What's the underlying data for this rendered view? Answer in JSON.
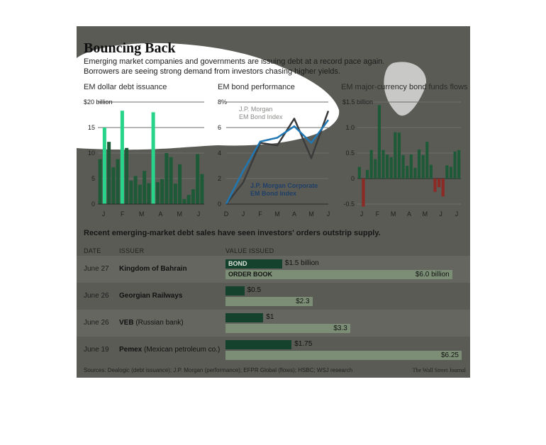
{
  "header": {
    "title": "Bouncing Back",
    "subtitle_line1": "Emerging market companies and governments are issuing debt at a record pace again.",
    "subtitle_line2": "Borrowers are seeing strong demand from investors chasing higher yields."
  },
  "colors": {
    "panel": "#5b5b56",
    "bar_green": "#1f5a38",
    "bar_highlight": "#27d48a",
    "bar_negative": "#8c2a25",
    "corporate_line": "#1f77b4",
    "em_bond_line": "#3b3b3b",
    "text": "#1b1b1b"
  },
  "chart_data": [
    {
      "type": "bar",
      "title": "EM dollar debt issuance",
      "unit_label": "$20 billion",
      "ylim": [
        0,
        20
      ],
      "yticks": [
        0,
        5,
        10,
        15,
        20
      ],
      "ytick_labels": [
        "0",
        "5",
        "10",
        "15",
        "$20 billion"
      ],
      "xtick_labels": [
        "J",
        "F",
        "M",
        "A",
        "M",
        "J"
      ],
      "values": [
        8.8,
        15,
        12.2,
        7.2,
        8.8,
        18.3,
        11,
        4.6,
        5.5,
        3.8,
        6.5,
        4.1,
        18,
        4.3,
        4.9,
        10,
        9.2,
        4,
        7.8,
        1,
        1.8,
        2.9,
        9.8,
        5.9
      ],
      "highlight_indices": [
        1,
        5,
        12
      ],
      "grid": true
    },
    {
      "type": "line",
      "title": "EM bond performance",
      "ylim": [
        0,
        8
      ],
      "yticks": [
        0,
        2,
        4,
        6,
        8
      ],
      "ytick_labels": [
        "0",
        "2",
        "4",
        "6",
        "8%"
      ],
      "xtick_labels": [
        "D",
        "J",
        "F",
        "M",
        "A",
        "M",
        "J"
      ],
      "x": [
        0,
        1,
        2,
        3,
        4,
        5,
        6
      ],
      "series": [
        {
          "name": "J.P. Morgan Corporate EM Bond Index",
          "values": [
            0,
            2.6,
            4.9,
            5.2,
            6.1,
            4.8,
            6.6
          ]
        },
        {
          "name": "J.P. Morgan EM Bond Index",
          "values": [
            0,
            1.7,
            4.8,
            4.6,
            6.7,
            3.6,
            7.3
          ]
        }
      ],
      "series_labels": [
        {
          "line1": "J.P. Morgan Corporate",
          "line2": "EM Bond Index"
        },
        {
          "line1": "J.P. Morgan",
          "line2": "EM Bond Index"
        }
      ],
      "grid": true
    },
    {
      "type": "bar",
      "title": "EM major-currency bond funds flows",
      "ylim": [
        -0.5,
        1.5
      ],
      "yticks": [
        -0.5,
        0,
        0.5,
        1.0,
        1.5
      ],
      "ytick_labels": [
        "-0.5",
        "0",
        "0.5",
        "1.0",
        "$1.5 billion"
      ],
      "xtick_labels": [
        "J",
        "F",
        "M",
        "A",
        "M",
        "J",
        "J"
      ],
      "values": [
        0.23,
        -0.55,
        0.17,
        0.56,
        0.38,
        1.44,
        0.56,
        0.47,
        0.42,
        0.91,
        0.9,
        0.46,
        0.25,
        0.47,
        0.21,
        0.57,
        0.46,
        0.72,
        0.27,
        -0.26,
        -0.17,
        -0.35,
        0.26,
        0.23,
        0.53,
        0.56
      ],
      "grid": true
    }
  ],
  "table": {
    "intro": "Recent emerging-market debt sales have seen investors' orders outstrip supply.",
    "headers": {
      "date": "DATE",
      "issuer": "ISSUER",
      "value": "VALUE ISSUED"
    },
    "bond_tag": "BOND",
    "order_tag": "ORDER BOOK",
    "scale_max": 6.25,
    "rows": [
      {
        "date": "June 27",
        "issuer": "Kingdom of Bahrain",
        "note": "",
        "bond": 1.5,
        "bond_label": "$1.5 billion",
        "order": 6.0,
        "order_label": "$6.0 billion"
      },
      {
        "date": "June 26",
        "issuer": "Georgian Railways",
        "note": "",
        "bond": 0.5,
        "bond_label": "$0.5",
        "order": 2.3,
        "order_label": "$2.3"
      },
      {
        "date": "June 26",
        "issuer": "VEB",
        "note": "(Russian bank)",
        "bond": 1.0,
        "bond_label": "$1",
        "order": 3.3,
        "order_label": "$3.3"
      },
      {
        "date": "June 19",
        "issuer": "Pemex",
        "note": "(Mexican petroleum co.)",
        "bond": 1.75,
        "bond_label": "$1.75",
        "order": 6.25,
        "order_label": "$6.25"
      }
    ]
  },
  "footer": {
    "sources": "Sources: Dealogic (debt issuance); J.P. Morgan (performance); EFPR Global (flows); HSBC; WSJ research",
    "credit": "The Wall Street Journal"
  }
}
